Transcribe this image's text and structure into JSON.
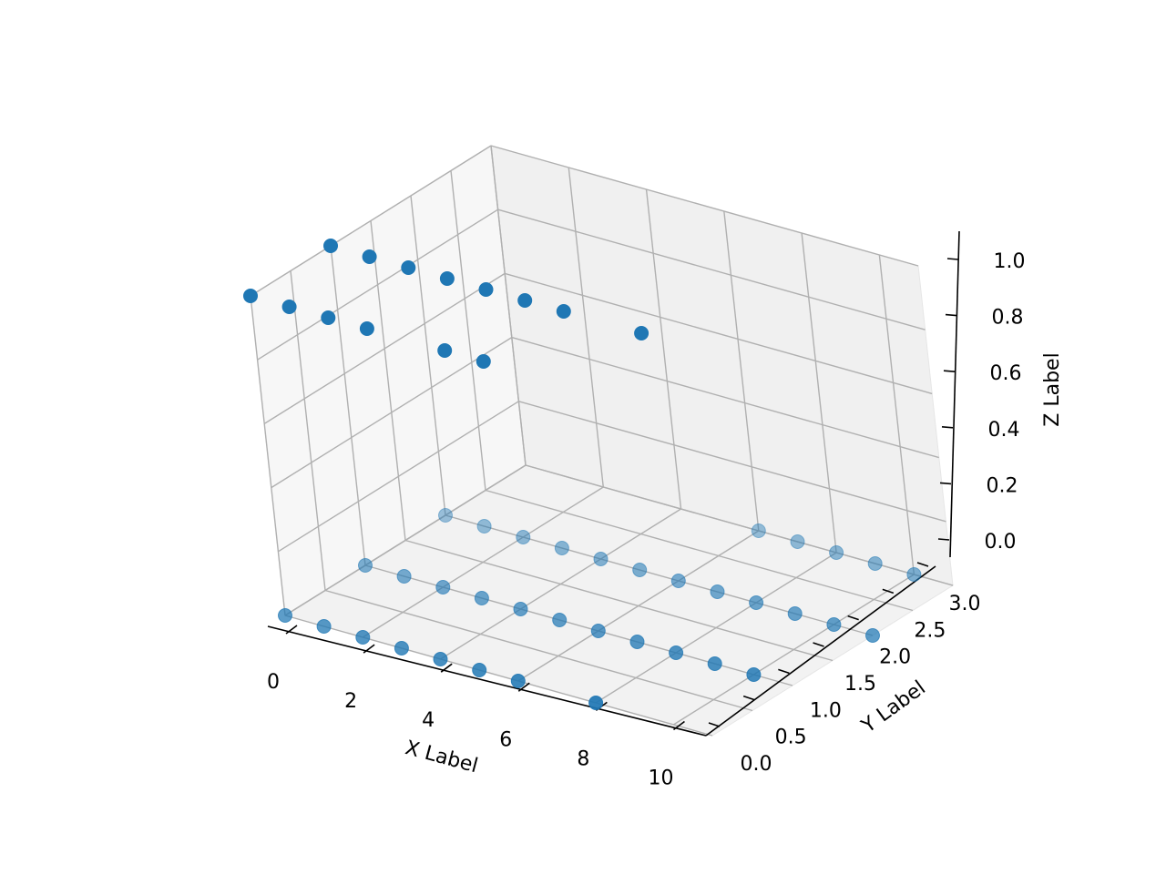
{
  "chart_data": {
    "type": "scatter3d",
    "title": "",
    "xlabel": "X Label",
    "ylabel": "Y Label",
    "zlabel": "Z Label",
    "xlim": [
      0,
      11
    ],
    "ylim": [
      0,
      3
    ],
    "zlim": [
      0,
      1
    ],
    "x_ticks": [
      0,
      2,
      4,
      6,
      8,
      10
    ],
    "y_ticks": [
      0.0,
      0.5,
      1.0,
      1.5,
      2.0,
      2.5,
      3.0
    ],
    "z_ticks": [
      0.0,
      0.2,
      0.4,
      0.6,
      0.8,
      1.0
    ],
    "x_tick_labels": [
      "0",
      "2",
      "4",
      "6",
      "8",
      "10"
    ],
    "y_tick_labels": [
      "0.0",
      "0.5",
      "1.0",
      "1.5",
      "2.0",
      "2.5",
      "3.0"
    ],
    "z_tick_labels": [
      "0.0",
      "0.2",
      "0.4",
      "0.6",
      "0.8",
      "1.0"
    ],
    "grid": true,
    "marker_color": "#1f77b4",
    "series": [
      {
        "points": [
          [
            0,
            0,
            1
          ],
          [
            1,
            0,
            1
          ],
          [
            2,
            0,
            1
          ],
          [
            3,
            0,
            1
          ],
          [
            5,
            0,
            1
          ],
          [
            6,
            0,
            1
          ],
          [
            0,
            1,
            1
          ],
          [
            1,
            1,
            1
          ],
          [
            2,
            1,
            1
          ],
          [
            3,
            1,
            1
          ],
          [
            4,
            1,
            1
          ],
          [
            5,
            1,
            1
          ],
          [
            6,
            1,
            1
          ],
          [
            8,
            1,
            1
          ],
          [
            0,
            0,
            0
          ],
          [
            1,
            0,
            0
          ],
          [
            2,
            0,
            0
          ],
          [
            3,
            0,
            0
          ],
          [
            4,
            0,
            0
          ],
          [
            5,
            0,
            0
          ],
          [
            6,
            0,
            0
          ],
          [
            8,
            0,
            0
          ],
          [
            0,
            1,
            0
          ],
          [
            1,
            1,
            0
          ],
          [
            2,
            1,
            0
          ],
          [
            3,
            1,
            0
          ],
          [
            4,
            1,
            0
          ],
          [
            5,
            1,
            0
          ],
          [
            6,
            1,
            0
          ],
          [
            7,
            1,
            0
          ],
          [
            8,
            1,
            0
          ],
          [
            9,
            1,
            0
          ],
          [
            10,
            1,
            0
          ],
          [
            0,
            2,
            0
          ],
          [
            1,
            2,
            0
          ],
          [
            2,
            2,
            0
          ],
          [
            3,
            2,
            0
          ],
          [
            4,
            2,
            0
          ],
          [
            5,
            2,
            0
          ],
          [
            6,
            2,
            0
          ],
          [
            7,
            2,
            0
          ],
          [
            8,
            2,
            0
          ],
          [
            9,
            2,
            0
          ],
          [
            10,
            2,
            0
          ],
          [
            11,
            2,
            0
          ],
          [
            6,
            3,
            0
          ],
          [
            7,
            3,
            0
          ],
          [
            8,
            3,
            0
          ],
          [
            9,
            3,
            0
          ],
          [
            10,
            3,
            0
          ]
        ]
      }
    ]
  }
}
